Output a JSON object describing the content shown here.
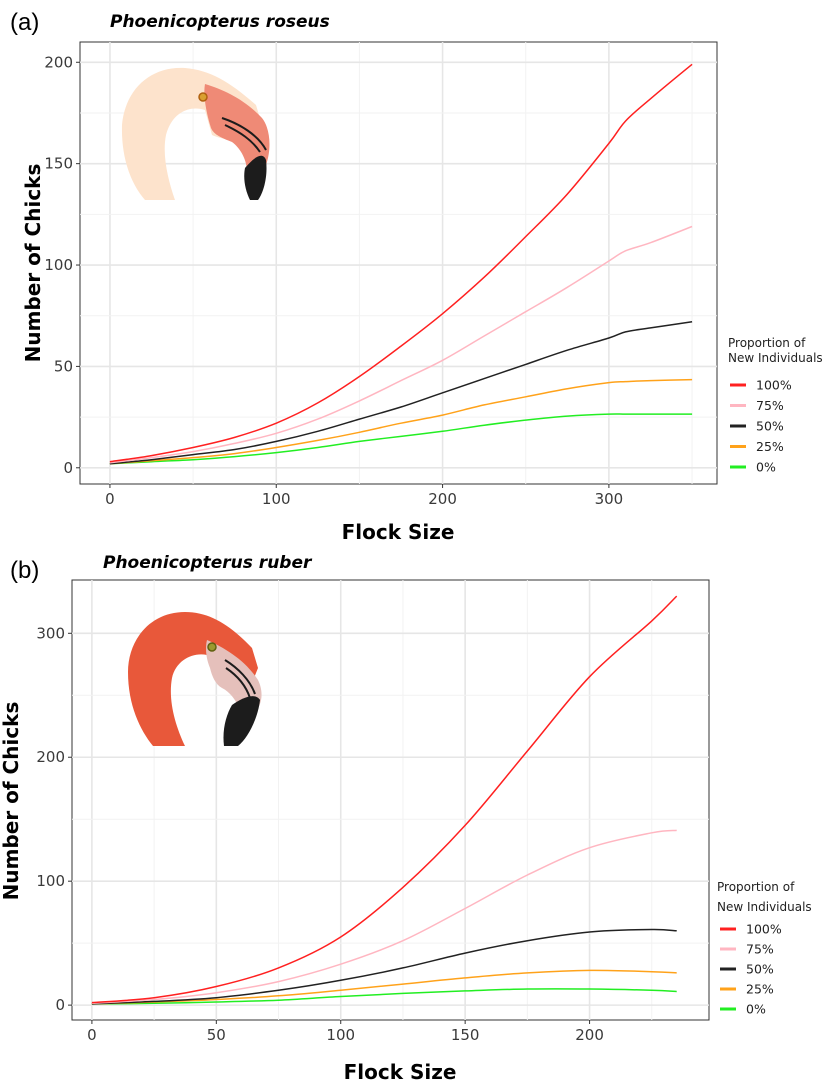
{
  "chart_data": [
    {
      "panel_label": "(a)",
      "title": "Phoenicopterus roseus",
      "type": "line",
      "xlabel": "Flock Size",
      "ylabel": "Number of Chicks",
      "xlim": [
        -18,
        365
      ],
      "ylim": [
        -8,
        210
      ],
      "xticks": [
        0,
        100,
        200,
        300
      ],
      "yticks": [
        0,
        50,
        100,
        150,
        200
      ],
      "grid": true,
      "legend_title": [
        "Proportion of",
        "New Individuals"
      ],
      "legend_position": "right",
      "series": [
        {
          "name": "100%",
          "color": "#ff2020",
          "x": [
            0,
            25,
            50,
            75,
            100,
            125,
            150,
            175,
            200,
            225,
            250,
            275,
            300,
            310,
            325,
            350
          ],
          "y": [
            3,
            6,
            10,
            15,
            22,
            32,
            45,
            60,
            76,
            94,
            114,
            135,
            160,
            171,
            182,
            199
          ]
        },
        {
          "name": "75%",
          "color": "#ffb6c1",
          "x": [
            0,
            25,
            50,
            75,
            100,
            125,
            150,
            175,
            200,
            225,
            250,
            275,
            300,
            310,
            325,
            350
          ],
          "y": [
            2.5,
            5,
            8,
            12,
            17,
            24,
            33,
            43,
            53,
            65,
            77,
            89,
            102,
            107,
            111,
            119
          ]
        },
        {
          "name": "50%",
          "color": "#222222",
          "x": [
            0,
            25,
            50,
            75,
            100,
            125,
            150,
            175,
            200,
            225,
            250,
            275,
            300,
            310,
            325,
            350
          ],
          "y": [
            2,
            4,
            6.5,
            9,
            13,
            18,
            24,
            30,
            37,
            44,
            51,
            58,
            64,
            67,
            69,
            72
          ]
        },
        {
          "name": "25%",
          "color": "#ffa21a",
          "x": [
            0,
            25,
            50,
            75,
            100,
            125,
            150,
            175,
            200,
            225,
            250,
            275,
            300,
            310,
            325,
            350
          ],
          "y": [
            2,
            3.5,
            5,
            7,
            10,
            13.5,
            17.5,
            22,
            26,
            31,
            35,
            39,
            42,
            42.5,
            43,
            43.5
          ]
        },
        {
          "name": "0%",
          "color": "#22ee22",
          "x": [
            0,
            25,
            50,
            75,
            100,
            125,
            150,
            175,
            200,
            225,
            250,
            275,
            300,
            310,
            325,
            350
          ],
          "y": [
            2,
            3,
            4,
            5.5,
            7.5,
            10,
            13,
            15.5,
            18,
            21,
            23.5,
            25.5,
            26.5,
            26.5,
            26.5,
            26.5
          ]
        }
      ]
    },
    {
      "panel_label": "(b)",
      "title": "Phoenicopterus ruber",
      "type": "line",
      "xlabel": "Flock Size",
      "ylabel": "Number of Chicks",
      "xlim": [
        -8,
        248
      ],
      "ylim": [
        -12,
        343
      ],
      "xticks": [
        0,
        50,
        100,
        150,
        200
      ],
      "yticks": [
        0,
        100,
        200,
        300
      ],
      "grid": true,
      "legend_title": [
        "Proportion of",
        "New Individuals"
      ],
      "legend_position": "right",
      "series": [
        {
          "name": "100%",
          "color": "#ff2020",
          "x": [
            0,
            25,
            50,
            75,
            100,
            125,
            150,
            175,
            200,
            225,
            235
          ],
          "y": [
            2,
            6,
            15,
            30,
            55,
            95,
            145,
            205,
            265,
            310,
            330
          ]
        },
        {
          "name": "75%",
          "color": "#ffb6c1",
          "x": [
            0,
            25,
            50,
            75,
            100,
            125,
            150,
            175,
            200,
            225,
            235
          ],
          "y": [
            1.5,
            4.5,
            10,
            19,
            33,
            52,
            78,
            105,
            127,
            139,
            141
          ]
        },
        {
          "name": "50%",
          "color": "#222222",
          "x": [
            0,
            25,
            50,
            75,
            100,
            125,
            150,
            175,
            200,
            225,
            235
          ],
          "y": [
            1,
            3,
            6,
            12,
            20,
            30,
            42,
            52,
            59,
            61,
            60
          ]
        },
        {
          "name": "25%",
          "color": "#ffa21a",
          "x": [
            0,
            25,
            50,
            75,
            100,
            125,
            150,
            175,
            200,
            225,
            235
          ],
          "y": [
            1,
            2.5,
            4.5,
            7.5,
            12,
            17,
            22,
            26,
            28,
            27,
            26
          ]
        },
        {
          "name": "0%",
          "color": "#22ee22",
          "x": [
            0,
            25,
            50,
            75,
            100,
            125,
            150,
            175,
            200,
            225,
            235
          ],
          "y": [
            1,
            1.5,
            2.5,
            4,
            7,
            9.5,
            11.5,
            13,
            13,
            12,
            11
          ]
        }
      ]
    }
  ]
}
